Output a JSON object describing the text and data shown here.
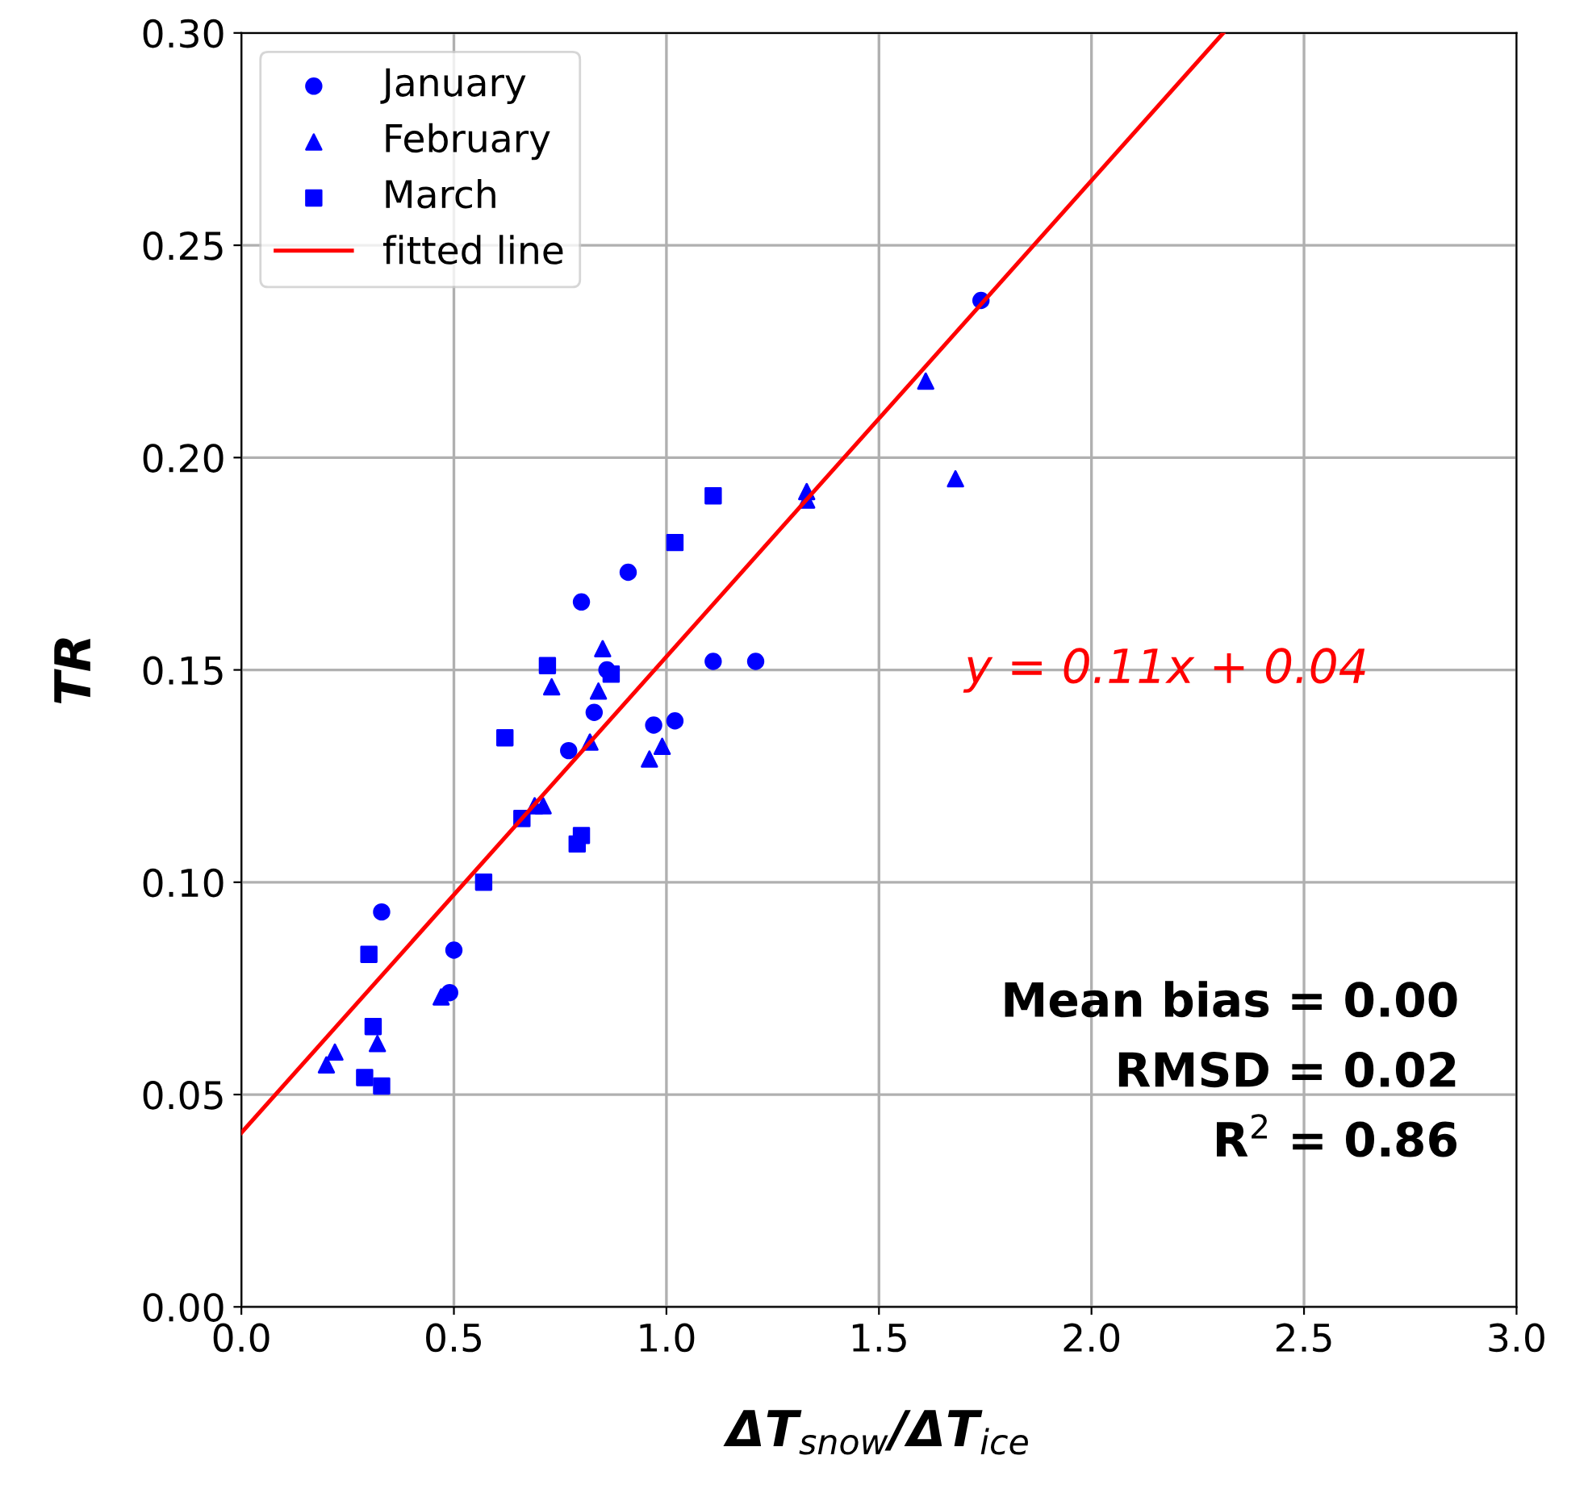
{
  "chart_data": {
    "type": "scatter",
    "xlabel": "ΔT$_{snow}$/ΔT$_{ice}$",
    "ylabel": "TR",
    "xlim": [
      0,
      3
    ],
    "ylim": [
      0,
      0.3
    ],
    "xticks": [
      {
        "value": 0,
        "label": "0.0"
      },
      0.5,
      {
        "value": 1,
        "label": "1.0"
      },
      1.5,
      {
        "value": 2,
        "label": "2.0"
      },
      2.5,
      {
        "value": 3,
        "label": "3.0"
      }
    ],
    "yticks": [
      {
        "value": 0,
        "label": "0.00"
      },
      0.05,
      {
        "value": 0.1,
        "label": "0.10"
      },
      0.15,
      {
        "value": 0.2,
        "label": "0.20"
      },
      0.25,
      {
        "value": 0.3,
        "label": "0.30"
      }
    ],
    "grid": true,
    "legend": "top left",
    "series": [
      {
        "name": "January",
        "color": "#0000ff",
        "marker": "circle",
        "x": [
          1.74,
          0.91,
          0.8,
          1.11,
          1.21,
          0.83,
          0.97,
          1.02,
          0.77,
          0.33,
          0.5,
          0.49,
          0.86
        ],
        "values": [
          0.237,
          0.173,
          0.166,
          0.152,
          0.152,
          0.14,
          0.137,
          0.138,
          0.131,
          0.093,
          0.084,
          0.074,
          0.15
        ]
      },
      {
        "name": "February",
        "color": "#0000ff",
        "marker": "triangle",
        "x": [
          1.61,
          1.68,
          1.33,
          1.33,
          0.85,
          0.73,
          0.84,
          0.82,
          0.99,
          0.96,
          0.69,
          0.71,
          0.47,
          0.22,
          0.2,
          0.32
        ],
        "values": [
          0.218,
          0.195,
          0.192,
          0.19,
          0.155,
          0.146,
          0.145,
          0.133,
          0.132,
          0.129,
          0.118,
          0.118,
          0.073,
          0.06,
          0.057,
          0.062
        ]
      },
      {
        "name": "March",
        "color": "#0000ff",
        "marker": "square",
        "x": [
          1.11,
          1.02,
          0.72,
          0.87,
          0.62,
          0.66,
          0.8,
          0.79,
          0.57,
          0.3,
          0.31,
          0.29,
          0.33
        ],
        "values": [
          0.191,
          0.18,
          0.151,
          0.149,
          0.134,
          0.115,
          0.111,
          0.109,
          0.1,
          0.083,
          0.066,
          0.054,
          0.052
        ]
      },
      {
        "name": "fitted line",
        "type": "line",
        "color": "#ff0000",
        "marker": "none",
        "line_style": "solid",
        "x": [
          0,
          2.31
        ],
        "values": [
          0.041,
          0.3
        ]
      }
    ],
    "annotations": [
      "y = 0.11x + 0.04",
      "Mean bias = 0.00",
      "RMSD = 0.02",
      "R$^{2}$ = 0.86"
    ]
  }
}
